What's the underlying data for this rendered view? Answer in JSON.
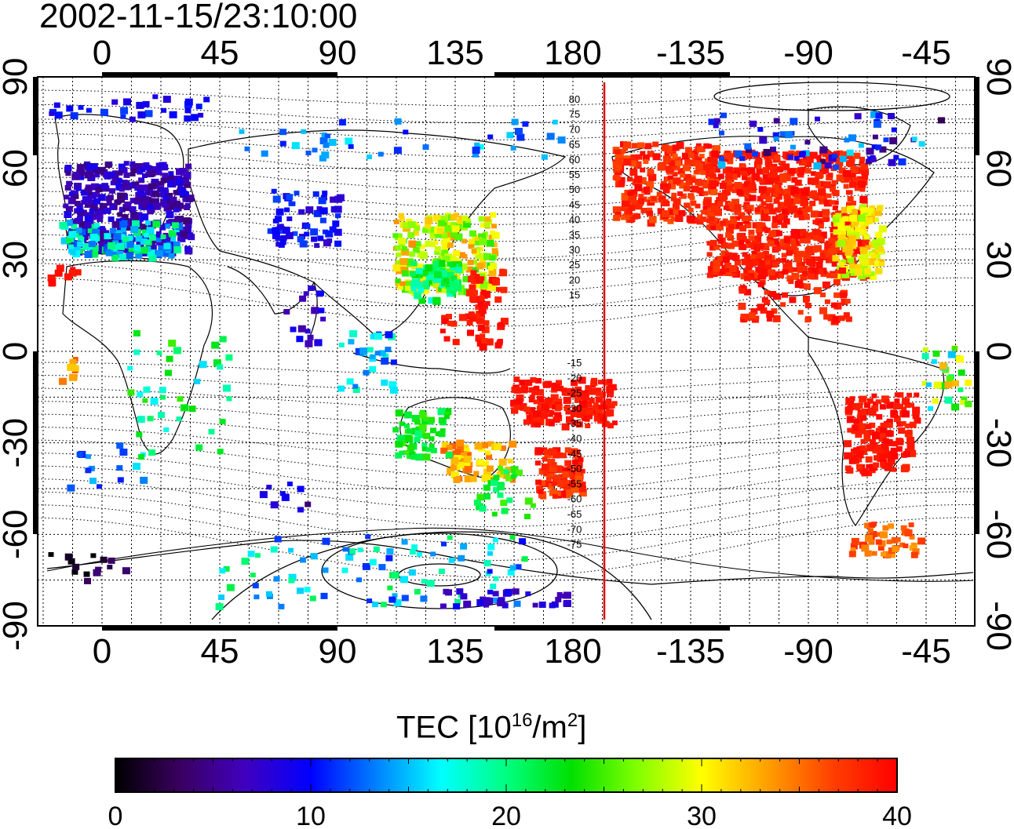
{
  "title": "2002-11-15/23:10:00",
  "map": {
    "lon_ticks": [
      "0",
      "45",
      "90",
      "135",
      "180",
      "-135",
      "-90",
      "-45"
    ],
    "lat_ticks": [
      "90",
      "60",
      "30",
      "0",
      "-30",
      "-60",
      "-90"
    ],
    "contour_labels_north": [
      "80",
      "75",
      "70",
      "65",
      "60",
      "55",
      "50",
      "45",
      "40",
      "35",
      "30",
      "25",
      "20",
      "15"
    ],
    "contour_labels_south": [
      "-15",
      "-20",
      "-25",
      "-30",
      "-35",
      "-40",
      "-45",
      "-50",
      "-55",
      "-60",
      "-65",
      "-70",
      "-75"
    ],
    "marker_line_color": "#e00000"
  },
  "colorbar": {
    "label_prefix": "TEC  [10",
    "label_exp1": "16",
    "label_mid": "/m",
    "label_exp2": "2",
    "label_suffix": "]",
    "min": 0,
    "max": 40,
    "ticks": [
      "0",
      "10",
      "20",
      "30",
      "40"
    ],
    "colors": [
      "#000000",
      "#3a0060",
      "#4000c0",
      "#0000ff",
      "#0080ff",
      "#00ffff",
      "#00ff80",
      "#00e000",
      "#80ff00",
      "#ffff00",
      "#ffa000",
      "#ff4000",
      "#ff0000"
    ]
  }
}
